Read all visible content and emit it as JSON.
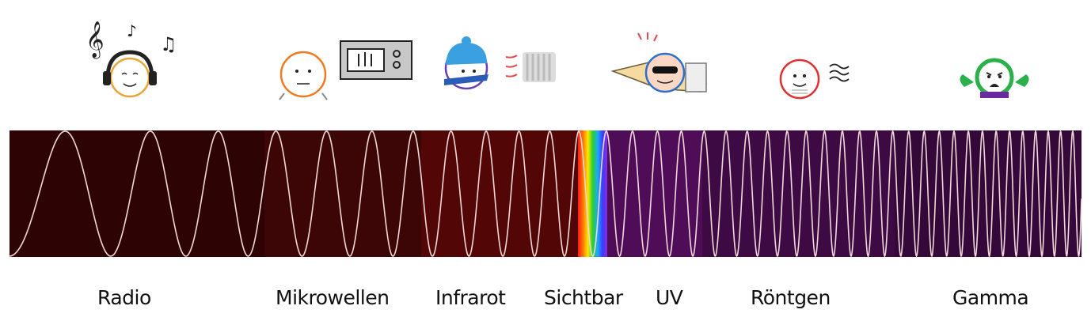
{
  "bands": [
    {
      "key": "radio",
      "label": "Radio",
      "color": "#2e0303"
    },
    {
      "key": "mikrowellen",
      "label": "Mikrowellen",
      "color": "#3c0506"
    },
    {
      "key": "infrarot",
      "label": "Infrarot",
      "color": "#520706"
    },
    {
      "key": "sichtbar",
      "label": "Sichtbar",
      "color": "rainbow"
    },
    {
      "key": "uv",
      "label": "UV",
      "color": "#4f0d57"
    },
    {
      "key": "roentgen",
      "label": "Röntgen",
      "color": "#3e0a44"
    },
    {
      "key": "gamma",
      "label": "Gamma",
      "color": "#34093a"
    }
  ],
  "wave_color": "#f0d8d8",
  "icons": [
    {
      "band": "radio",
      "icon": "person-with-headphones-music-icon"
    },
    {
      "band": "mikrowellen",
      "icon": "person-with-microwave-oven-icon"
    },
    {
      "band": "infrarot",
      "icon": "person-with-heater-icon"
    },
    {
      "band": "uv",
      "icon": "person-sunbathing-sunglasses-icon"
    },
    {
      "band": "roentgen",
      "icon": "person-xray-icon"
    },
    {
      "band": "gamma",
      "icon": "green-angry-hulk-icon"
    }
  ]
}
